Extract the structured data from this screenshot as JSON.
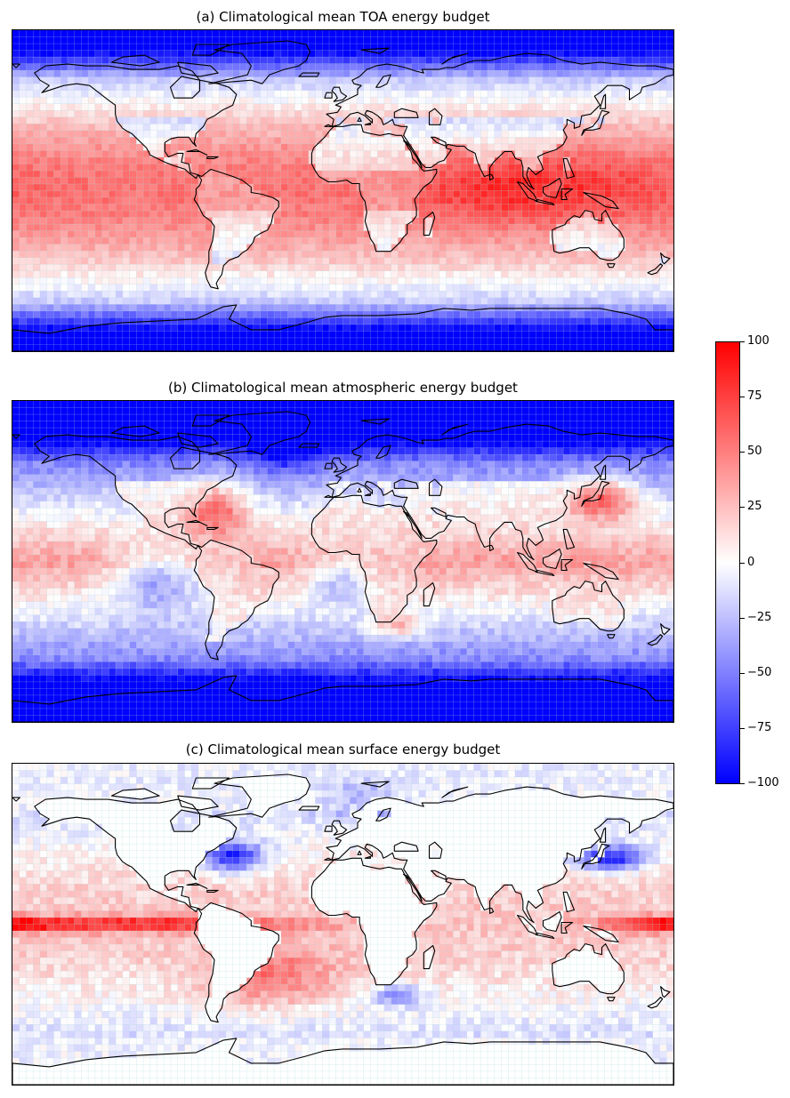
{
  "panels": [
    {
      "id": "a",
      "title": "(a) Climatological mean TOA energy budget",
      "field": "toa"
    },
    {
      "id": "b",
      "title": "(b) Climatological mean atmospheric energy budget",
      "field": "atm"
    },
    {
      "id": "c",
      "title": "(c) Climatological mean surface energy budget",
      "field": "sfc"
    }
  ],
  "colorbar": {
    "min": -100,
    "max": 100,
    "ticks": [
      "100",
      "75",
      "50",
      "25",
      "0",
      "−25",
      "−50",
      "−75",
      "−100"
    ],
    "colormap": [
      "#0000ff",
      "#ffffff",
      "#ff0000"
    ]
  },
  "colors": {
    "coastline": "#000000",
    "grid_line": "#a8d8d8"
  }
}
